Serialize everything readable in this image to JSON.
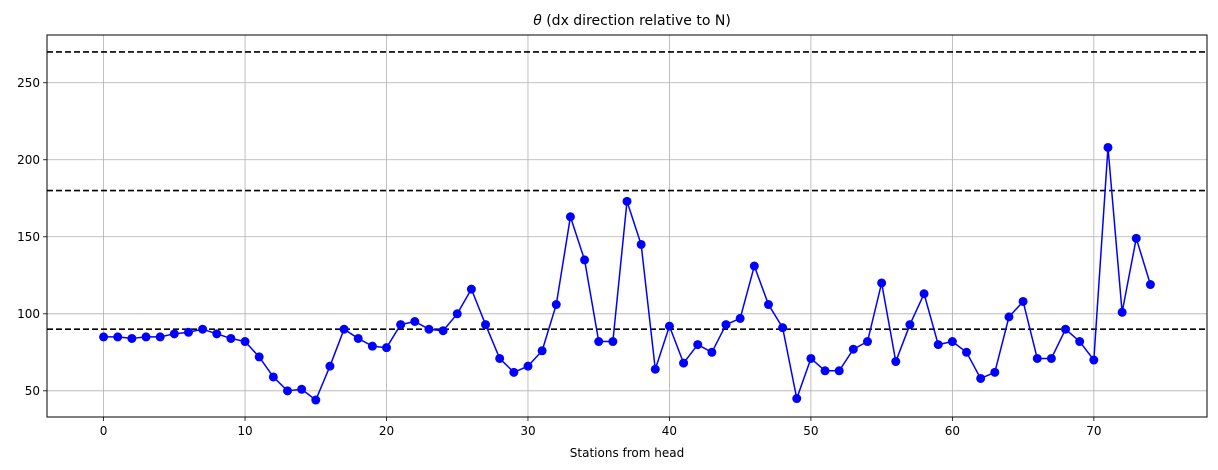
{
  "chart_data": {
    "type": "line",
    "title_symbol": "θ",
    "title_rest": " (dx direction relative to N)",
    "xlabel": "Stations from head",
    "ylabel": "",
    "xlim": [
      -4,
      78
    ],
    "ylim": [
      33,
      281
    ],
    "xticks": [
      0,
      10,
      20,
      30,
      40,
      50,
      60,
      70
    ],
    "yticks": [
      50,
      100,
      150,
      200,
      250
    ],
    "grid": true,
    "reference_lines": [
      90,
      180,
      270
    ],
    "colors": {
      "line": "#0000ff",
      "marker": "#0000ff",
      "reference": "#000000",
      "grid": "#b0b0b0"
    },
    "series": [
      {
        "x": [
          0,
          1,
          2,
          3,
          4,
          5,
          6,
          7,
          8,
          9,
          10,
          11,
          12,
          13,
          14,
          15,
          16,
          17,
          18,
          19,
          20,
          21,
          22,
          23,
          24,
          25,
          26,
          27,
          28,
          29,
          30,
          31,
          32,
          33,
          34,
          35,
          36,
          37,
          38,
          39,
          40,
          41,
          42,
          43,
          44,
          45,
          46,
          47,
          48,
          49,
          50,
          51,
          52,
          53,
          54,
          55,
          56,
          57,
          58,
          59,
          60,
          61,
          62,
          63,
          64,
          65,
          66,
          67,
          68,
          69,
          70,
          71,
          72,
          73,
          74
        ],
        "values": [
          85,
          85,
          84,
          85,
          85,
          87,
          88,
          90,
          87,
          84,
          82,
          72,
          59,
          50,
          51,
          44,
          66,
          90,
          84,
          79,
          78,
          93,
          95,
          90,
          89,
          100,
          116,
          93,
          71,
          62,
          66,
          76,
          106,
          163,
          135,
          82,
          82,
          173,
          145,
          64,
          92,
          68,
          80,
          75,
          93,
          97,
          131,
          106,
          91,
          45,
          71,
          63,
          63,
          77,
          82,
          120,
          69,
          93,
          113,
          80,
          82,
          75,
          58,
          62,
          98,
          108,
          71,
          71,
          90,
          82,
          70,
          208,
          101,
          149,
          119
        ]
      }
    ]
  }
}
